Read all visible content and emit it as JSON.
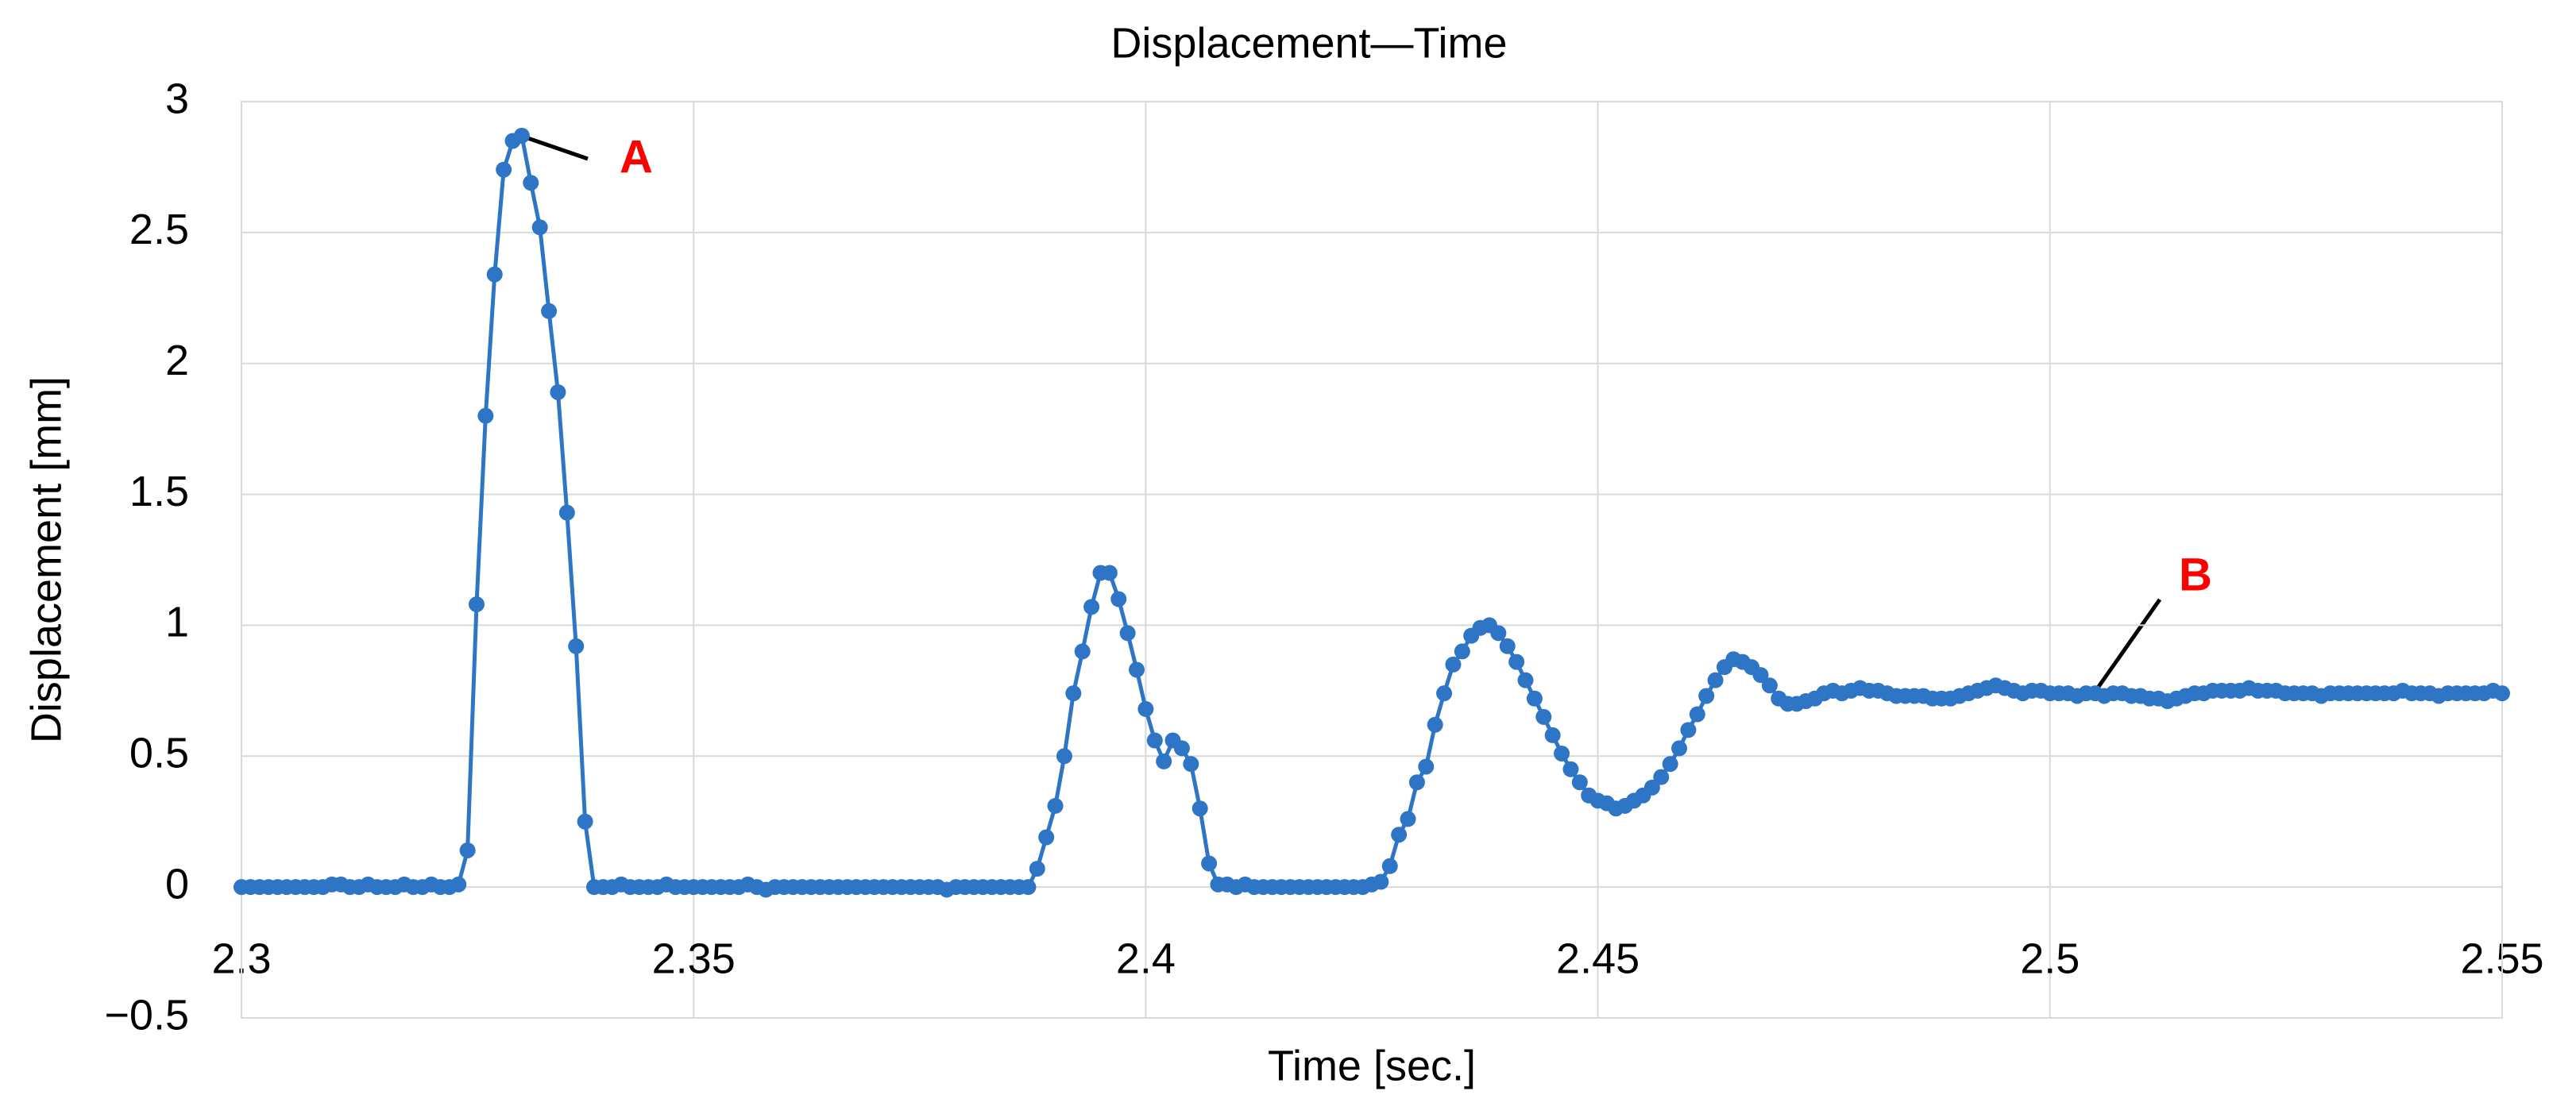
{
  "chart_data": {
    "type": "line",
    "title": "Displacement—Time",
    "x_label": "Time [sec.]",
    "y_label": "Displacement [mm]",
    "color": "#2e75c6",
    "grid": true,
    "xlim": [
      2.3,
      2.55
    ],
    "xticks": [
      2.3,
      2.35,
      2.4,
      2.45,
      2.5,
      2.55
    ],
    "ylim": [
      -0.5,
      3
    ],
    "yticks": [
      {
        "value": -0.5,
        "label": "−0.5"
      },
      0,
      0.5,
      1,
      1.5,
      2,
      2.5,
      3
    ],
    "annotations": [
      "A",
      "B"
    ],
    "x": [
      2.3,
      2.301,
      2.302,
      2.303,
      2.304,
      2.305,
      2.306,
      2.307,
      2.308,
      2.309,
      2.31,
      2.311,
      2.312,
      2.313,
      2.314,
      2.315,
      2.316,
      2.317,
      2.318,
      2.319,
      2.32,
      2.321,
      2.322,
      2.323,
      2.324,
      2.325,
      2.326,
      2.327,
      2.328,
      2.329,
      2.33,
      2.331,
      2.332,
      2.333,
      2.334,
      2.335,
      2.336,
      2.337,
      2.338,
      2.339,
      2.34,
      2.341,
      2.342,
      2.343,
      2.344,
      2.345,
      2.346,
      2.347,
      2.348,
      2.349,
      2.35,
      2.351,
      2.352,
      2.353,
      2.354,
      2.355,
      2.356,
      2.357,
      2.358,
      2.359,
      2.36,
      2.361,
      2.362,
      2.363,
      2.364,
      2.365,
      2.366,
      2.367,
      2.368,
      2.369,
      2.37,
      2.371,
      2.372,
      2.373,
      2.374,
      2.375,
      2.376,
      2.377,
      2.378,
      2.379,
      2.38,
      2.381,
      2.382,
      2.383,
      2.384,
      2.385,
      2.386,
      2.387,
      2.388,
      2.389,
      2.39,
      2.391,
      2.392,
      2.393,
      2.394,
      2.395,
      2.396,
      2.397,
      2.398,
      2.399,
      2.4,
      2.401,
      2.402,
      2.403,
      2.404,
      2.405,
      2.406,
      2.407,
      2.408,
      2.409,
      2.41,
      2.411,
      2.412,
      2.413,
      2.414,
      2.415,
      2.416,
      2.417,
      2.418,
      2.419,
      2.42,
      2.421,
      2.422,
      2.423,
      2.424,
      2.425,
      2.426,
      2.427,
      2.428,
      2.429,
      2.43,
      2.431,
      2.432,
      2.433,
      2.434,
      2.435,
      2.436,
      2.437,
      2.438,
      2.439,
      2.44,
      2.441,
      2.442,
      2.443,
      2.444,
      2.445,
      2.446,
      2.447,
      2.448,
      2.449,
      2.45,
      2.451,
      2.452,
      2.453,
      2.454,
      2.455,
      2.456,
      2.457,
      2.458,
      2.459,
      2.46,
      2.461,
      2.462,
      2.463,
      2.464,
      2.465,
      2.466,
      2.467,
      2.468,
      2.469,
      2.47,
      2.471,
      2.472,
      2.473,
      2.474,
      2.475,
      2.476,
      2.477,
      2.478,
      2.479,
      2.48,
      2.481,
      2.482,
      2.483,
      2.484,
      2.485,
      2.486,
      2.487,
      2.488,
      2.489,
      2.49,
      2.491,
      2.492,
      2.493,
      2.494,
      2.495,
      2.496,
      2.497,
      2.498,
      2.499,
      2.5,
      2.501,
      2.502,
      2.503,
      2.504,
      2.505,
      2.506,
      2.507,
      2.508,
      2.509,
      2.51,
      2.511,
      2.512,
      2.513,
      2.514,
      2.515,
      2.516,
      2.517,
      2.518,
      2.519,
      2.52,
      2.521,
      2.522,
      2.523,
      2.524,
      2.525,
      2.526,
      2.527,
      2.528,
      2.529,
      2.53,
      2.531,
      2.532,
      2.533,
      2.534,
      2.535,
      2.536,
      2.537,
      2.538,
      2.539,
      2.54,
      2.541,
      2.542,
      2.543,
      2.544,
      2.545,
      2.546,
      2.547,
      2.548,
      2.549,
      2.55
    ],
    "values": [
      0,
      0,
      0,
      0,
      0,
      0,
      0,
      0,
      0,
      0,
      0.01,
      0.01,
      0,
      0,
      0.01,
      0,
      0,
      0,
      0.01,
      0,
      0,
      0.01,
      0,
      0,
      0.01,
      0.14,
      1.08,
      1.8,
      2.34,
      2.74,
      2.85,
      2.87,
      2.69,
      2.52,
      2.2,
      1.89,
      1.43,
      0.92,
      0.25,
      0,
      0,
      0,
      0.01,
      0,
      0,
      0,
      0,
      0.01,
      0,
      0,
      0,
      0,
      0,
      0,
      0,
      0,
      0.01,
      0,
      -0.01,
      0,
      0,
      0,
      0,
      0,
      0,
      0,
      0,
      0,
      0,
      0,
      0,
      0,
      0,
      0,
      0,
      0,
      0,
      0,
      -0.01,
      0,
      0,
      0,
      0,
      0,
      0,
      0,
      0,
      0,
      0.07,
      0.19,
      0.31,
      0.5,
      0.74,
      0.9,
      1.07,
      1.2,
      1.2,
      1.1,
      0.97,
      0.83,
      0.68,
      0.56,
      0.48,
      0.56,
      0.53,
      0.47,
      0.3,
      0.09,
      0.01,
      0.01,
      0,
      0.01,
      0,
      0,
      0,
      0,
      0,
      0,
      0,
      0,
      0,
      0,
      0,
      0,
      0,
      0.01,
      0.02,
      0.08,
      0.2,
      0.26,
      0.4,
      0.46,
      0.62,
      0.74,
      0.85,
      0.9,
      0.96,
      0.99,
      1.0,
      0.97,
      0.92,
      0.86,
      0.79,
      0.72,
      0.65,
      0.58,
      0.51,
      0.45,
      0.4,
      0.35,
      0.33,
      0.32,
      0.3,
      0.31,
      0.33,
      0.35,
      0.38,
      0.42,
      0.47,
      0.53,
      0.6,
      0.66,
      0.73,
      0.79,
      0.84,
      0.87,
      0.86,
      0.84,
      0.81,
      0.77,
      0.72,
      0.7,
      0.7,
      0.71,
      0.72,
      0.74,
      0.75,
      0.74,
      0.75,
      0.76,
      0.75,
      0.75,
      0.74,
      0.73,
      0.73,
      0.73,
      0.73,
      0.72,
      0.72,
      0.72,
      0.73,
      0.74,
      0.75,
      0.76,
      0.77,
      0.76,
      0.75,
      0.74,
      0.75,
      0.75,
      0.74,
      0.74,
      0.74,
      0.73,
      0.74,
      0.74,
      0.73,
      0.74,
      0.74,
      0.73,
      0.73,
      0.72,
      0.72,
      0.71,
      0.72,
      0.73,
      0.74,
      0.74,
      0.75,
      0.75,
      0.75,
      0.75,
      0.76,
      0.75,
      0.75,
      0.75,
      0.74,
      0.74,
      0.74,
      0.74,
      0.73,
      0.74,
      0.74,
      0.74,
      0.74,
      0.74,
      0.74,
      0.74,
      0.74,
      0.75,
      0.74,
      0.74,
      0.74,
      0.73,
      0.74,
      0.74,
      0.74,
      0.74,
      0.74,
      0.75,
      0.74
    ]
  }
}
